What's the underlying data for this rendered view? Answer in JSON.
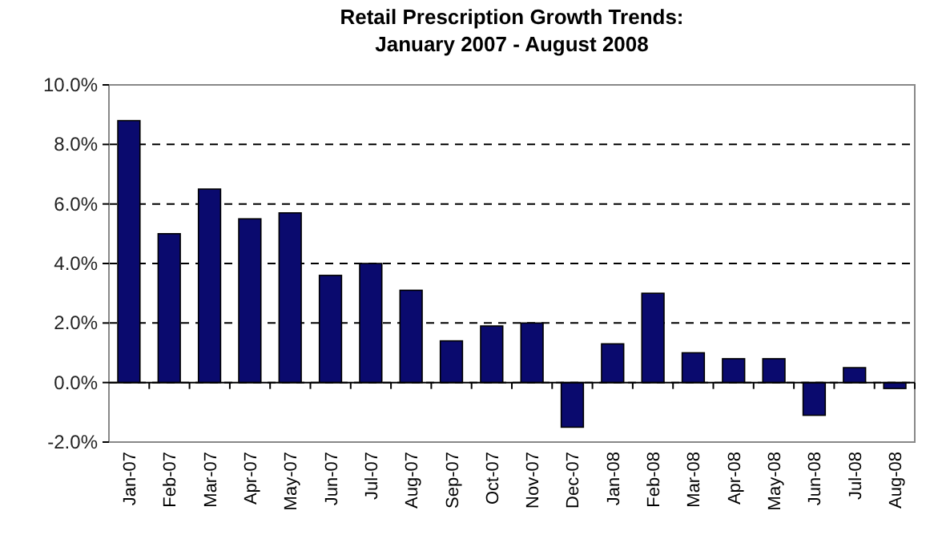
{
  "chart_data": {
    "type": "bar",
    "title": "Retail Prescription Growth Trends:\nJanuary 2007 - August 2008",
    "categories": [
      "Jan-07",
      "Feb-07",
      "Mar-07",
      "Apr-07",
      "May-07",
      "Jun-07",
      "Jul-07",
      "Aug-07",
      "Sep-07",
      "Oct-07",
      "Nov-07",
      "Dec-07",
      "Jan-08",
      "Feb-08",
      "Mar-08",
      "Apr-08",
      "May-08",
      "Jun-08",
      "Jul-08",
      "Aug-08"
    ],
    "values": [
      8.8,
      5.0,
      6.5,
      5.5,
      5.7,
      3.6,
      4.0,
      3.1,
      1.4,
      1.9,
      2.0,
      -1.5,
      1.3,
      3.0,
      1.0,
      0.8,
      0.8,
      -1.1,
      0.5,
      -0.2
    ],
    "color": "#0a0a6e",
    "ylim": [
      -2,
      10
    ],
    "yticks": [
      {
        "value": -2,
        "label": "-2.0%"
      },
      {
        "value": 0,
        "label": "0.0%"
      },
      {
        "value": 2,
        "label": "2.0%"
      },
      {
        "value": 4,
        "label": "4.0%"
      },
      {
        "value": 6,
        "label": "6.0%"
      },
      {
        "value": 8,
        "label": "8.0%"
      },
      {
        "value": 10,
        "label": "10.0%"
      }
    ],
    "grid": "y",
    "line_style": "dashed"
  }
}
